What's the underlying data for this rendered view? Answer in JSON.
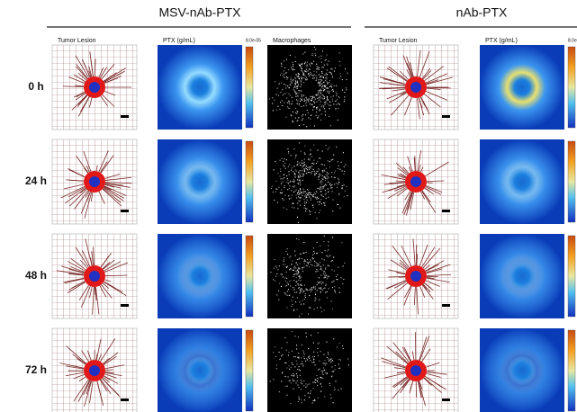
{
  "groups": [
    {
      "title": "MSV-nAb-PTX",
      "columns": [
        "Tumor  Lesion",
        "PTX (g/mL)",
        "Macrophages"
      ],
      "colorbar_max": "8.0e-05"
    },
    {
      "title": "nAb-PTX",
      "columns": [
        "Tumor  Lesion",
        "PTX (g/mL)"
      ],
      "colorbar_max": "8.0e"
    }
  ],
  "rows": [
    "0 h",
    "24 h",
    "48 h",
    "72 h"
  ]
}
